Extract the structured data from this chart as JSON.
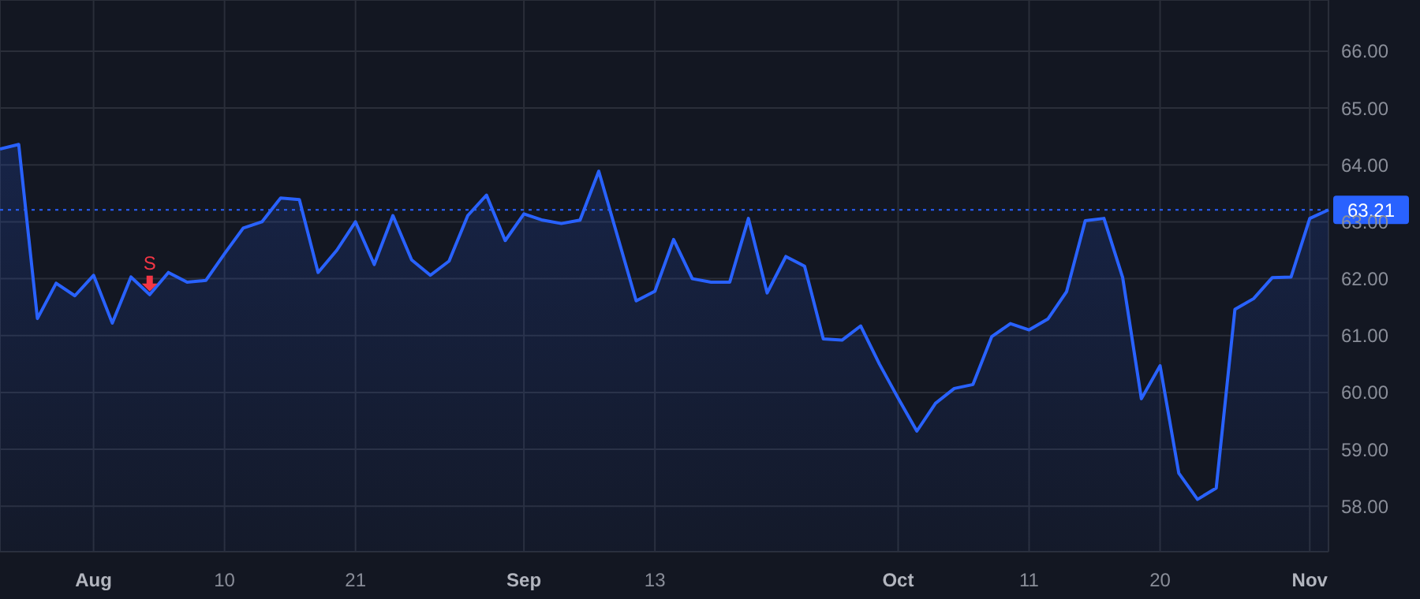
{
  "chart_data": {
    "type": "area",
    "categories": [
      null,
      null,
      null,
      null,
      null,
      "Aug",
      null,
      null,
      null,
      null,
      null,
      null,
      "10",
      null,
      null,
      null,
      null,
      null,
      null,
      "21",
      null,
      null,
      null,
      null,
      null,
      null,
      null,
      null,
      "Sep",
      null,
      null,
      null,
      null,
      null,
      null,
      "13",
      null,
      null,
      null,
      null,
      null,
      null,
      null,
      null,
      null,
      null,
      null,
      null,
      "Oct",
      null,
      null,
      null,
      null,
      null,
      null,
      "11",
      null,
      null,
      null,
      null,
      null,
      null,
      "20",
      null,
      null,
      null,
      null,
      null,
      null,
      null,
      "Nov",
      null
    ],
    "series": [
      {
        "color": "#2962ff",
        "values": [
          64.28,
          64.36,
          61.3,
          61.92,
          61.7,
          62.06,
          61.22,
          62.03,
          61.72,
          62.11,
          61.94,
          61.97,
          62.44,
          62.89,
          63.0,
          63.42,
          63.39,
          62.11,
          62.5,
          63.0,
          62.25,
          63.11,
          62.33,
          62.06,
          62.31,
          63.11,
          63.47,
          62.67,
          63.14,
          63.03,
          62.97,
          63.03,
          63.89,
          62.75,
          61.61,
          61.78,
          62.69,
          62.0,
          61.94,
          61.94,
          63.06,
          61.75,
          62.39,
          62.22,
          60.94,
          60.92,
          61.17,
          60.5,
          59.9,
          59.32,
          59.81,
          60.07,
          60.14,
          60.98,
          61.21,
          61.1,
          61.29,
          61.77,
          63.02,
          63.06,
          62.02,
          59.89,
          60.47,
          58.58,
          58.12,
          58.32,
          61.46,
          61.65,
          62.02,
          62.03,
          63.06,
          63.21
        ]
      }
    ],
    "ylim": [
      57.2,
      66.9
    ],
    "yticks": [
      {
        "value": 58,
        "label": "58.00"
      },
      {
        "value": 59,
        "label": "59.00"
      },
      {
        "value": 60,
        "label": "60.00"
      },
      {
        "value": 61,
        "label": "61.00"
      },
      {
        "value": 62,
        "label": "62.00"
      },
      {
        "value": 63,
        "label": "63.00"
      },
      {
        "value": 64,
        "label": "64.00"
      },
      {
        "value": 65,
        "label": "65.00"
      },
      {
        "value": 66,
        "label": "66.00"
      }
    ],
    "ref_lines": [
      {
        "axis": "y",
        "value": 63.21,
        "label": "63.21",
        "color": "#2962ff",
        "line_style": "dotted"
      }
    ],
    "annotations": [
      {
        "text": "S",
        "y": 61.72
      }
    ],
    "grid": true,
    "marker": "none"
  }
}
